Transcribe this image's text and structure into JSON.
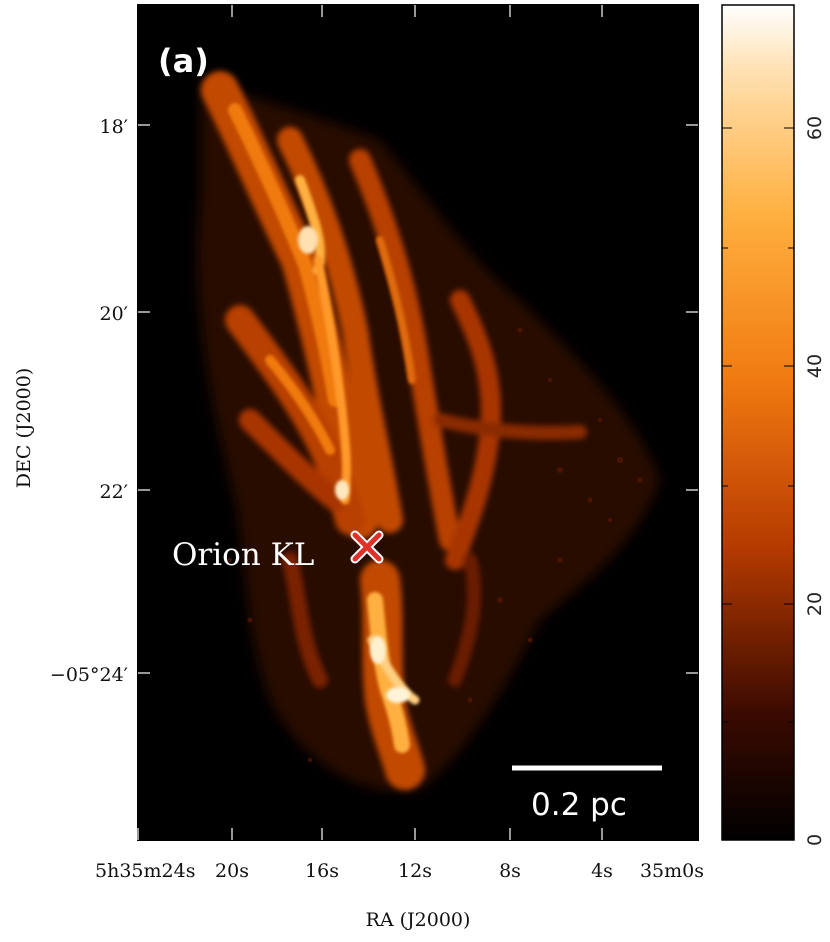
{
  "panel_label": "(a)",
  "source_label": "Orion KL",
  "scale_bar_label": "0.2 pc",
  "y_axis": {
    "title": "DEC (J2000)",
    "ticks": [
      {
        "label": "18′"
      },
      {
        "label": "20′"
      },
      {
        "label": "22′"
      },
      {
        "label": "−05°24′"
      }
    ]
  },
  "x_axis": {
    "title": "RA (J2000)",
    "ticks": [
      {
        "label": "5h35m24s"
      },
      {
        "label": "20s"
      },
      {
        "label": "16s"
      },
      {
        "label": "12s"
      },
      {
        "label": "8s"
      },
      {
        "label": "4s"
      },
      {
        "label": "35m0s"
      }
    ]
  },
  "colorbar": {
    "ticks": [
      "0",
      "20",
      "40",
      "60"
    ],
    "min": 0,
    "max": 70
  },
  "colors": {
    "background": "#000000",
    "filament_dark": "#a83500",
    "filament_mid": "#f07a10",
    "filament_bright": "#ffc060",
    "filament_peak": "#fff4d8",
    "marker": "#e0302a"
  }
}
